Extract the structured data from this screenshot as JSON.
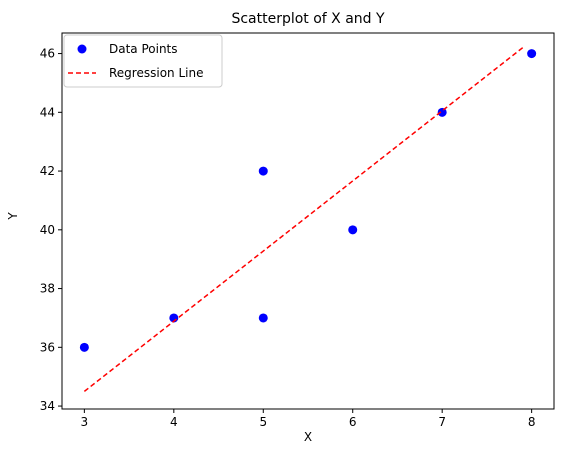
{
  "chart_data": {
    "type": "scatter",
    "title": "Scatterplot of X and Y",
    "xlabel": "X",
    "ylabel": "Y",
    "xlim": [
      2.75,
      8.25
    ],
    "ylim": [
      33.9,
      46.7
    ],
    "xticks": [
      3,
      4,
      5,
      6,
      7,
      8
    ],
    "yticks": [
      34,
      36,
      38,
      40,
      42,
      44,
      46
    ],
    "grid": false,
    "legend": {
      "placement": "top-left",
      "entries": [
        "Data Points",
        "Regression Line"
      ]
    },
    "series": [
      {
        "name": "Data Points",
        "kind": "scatter",
        "color": "#0000ff",
        "points": [
          {
            "x": 3,
            "y": 36
          },
          {
            "x": 4,
            "y": 37
          },
          {
            "x": 5,
            "y": 42
          },
          {
            "x": 5,
            "y": 37
          },
          {
            "x": 6,
            "y": 40
          },
          {
            "x": 7,
            "y": 44
          },
          {
            "x": 8,
            "y": 46
          }
        ]
      },
      {
        "name": "Regression Line",
        "kind": "line",
        "color": "#ff0000",
        "style": "dashed",
        "points": [
          {
            "x": 3.0,
            "y": 34.5
          },
          {
            "x": 7.9,
            "y": 46.2
          }
        ]
      }
    ]
  }
}
